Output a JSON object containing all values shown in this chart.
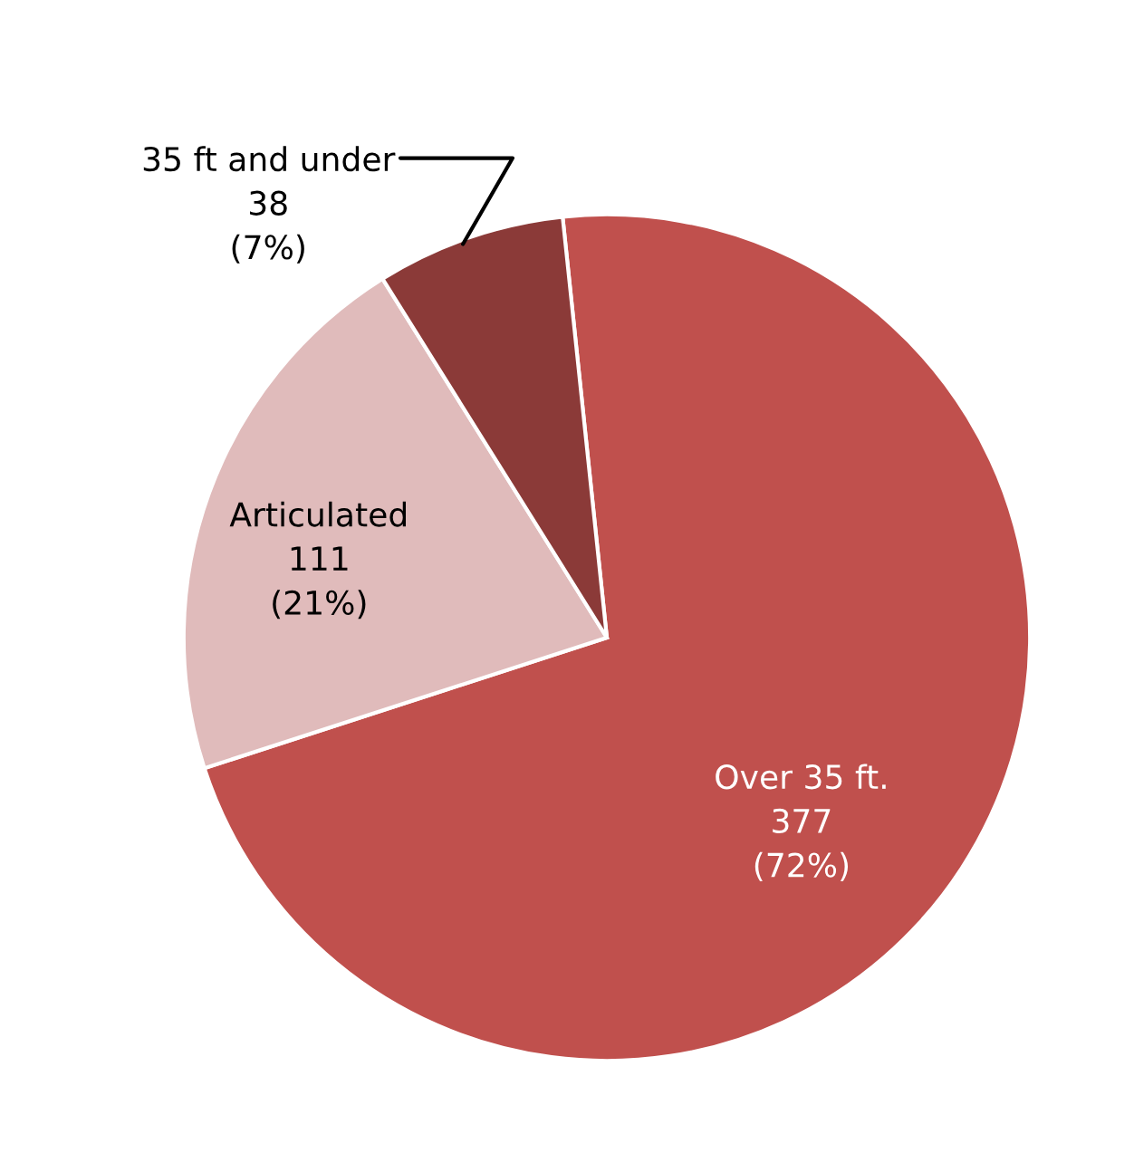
{
  "chart_data": {
    "type": "pie",
    "categories": [
      "Over 35 ft.",
      "Articulated",
      "35 ft and under"
    ],
    "values": [
      377,
      111,
      38
    ],
    "value_labels": [
      "377\n(72%)",
      "111\n(21%)",
      "38\n(7%)"
    ],
    "colors": [
      "#c0504d",
      "#e0bbbb",
      "#8b3a38"
    ]
  }
}
